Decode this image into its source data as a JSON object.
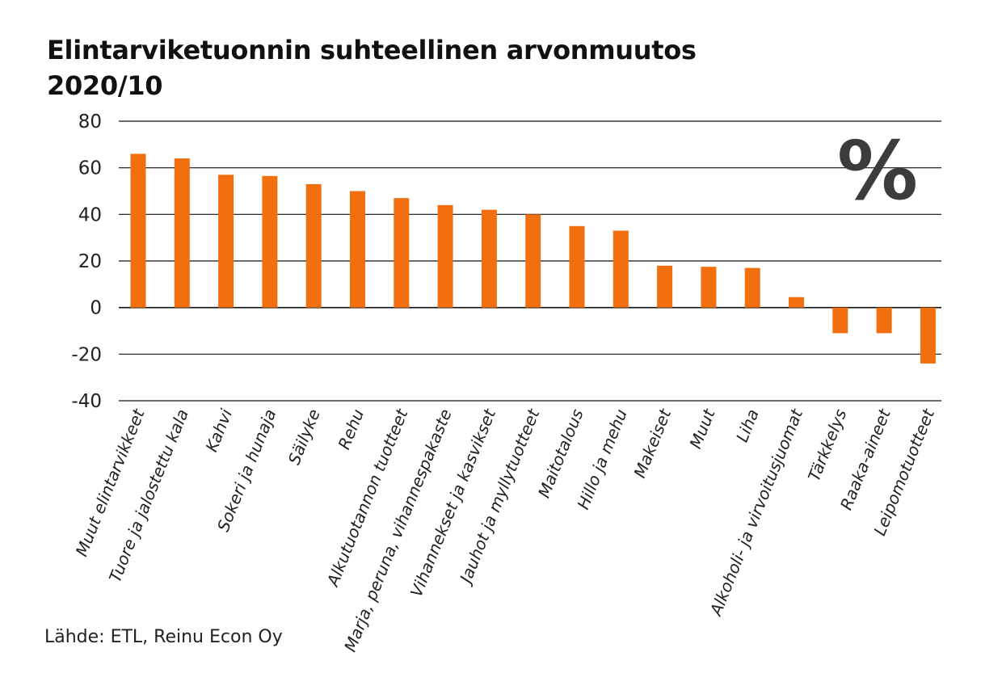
{
  "chart_data": {
    "type": "bar",
    "title": "Elintarviketuonnin suhteellinen arvonmuutos 2020/10",
    "title_lines": [
      "Elintarviketuonnin suhteellinen arvonmuutos",
      "2020/10"
    ],
    "unit_label": "%",
    "source": "Lähde: ETL, Reinu Econ Oy",
    "xlabel": "",
    "ylabel": "",
    "ylim": [
      -40,
      80
    ],
    "yticks": [
      80,
      60,
      40,
      20,
      0,
      -20,
      -40
    ],
    "ytick_labels": [
      "80",
      "60",
      "40",
      "20",
      "0",
      "-20",
      "-40"
    ],
    "grid": true,
    "bar_color": "#f26f0f",
    "categories": [
      "Muut elintarvikkeet",
      "Tuore ja jalostettu kala",
      "Kahvi",
      "Sokeri ja hunaja",
      "Säilyke",
      "Rehu",
      "Alkutuotannon tuotteet",
      "Marja, peruna, vihannespakaste",
      "Vihannekset ja kasvikset",
      "Jauhot ja myllytuotteet",
      "Maitotalous",
      "Hillo ja mehu",
      "Makeiset",
      "Muut",
      "Liha",
      "Alkoholi- ja virvoitusjuomat",
      "Tärkkelys",
      "Raaka-aineet",
      "Leipomotuotteet"
    ],
    "values": [
      66,
      64,
      57,
      56.5,
      53,
      50,
      47,
      44,
      42,
      40,
      35,
      33,
      18,
      17.5,
      17,
      4.5,
      -11,
      -11,
      -24
    ]
  }
}
